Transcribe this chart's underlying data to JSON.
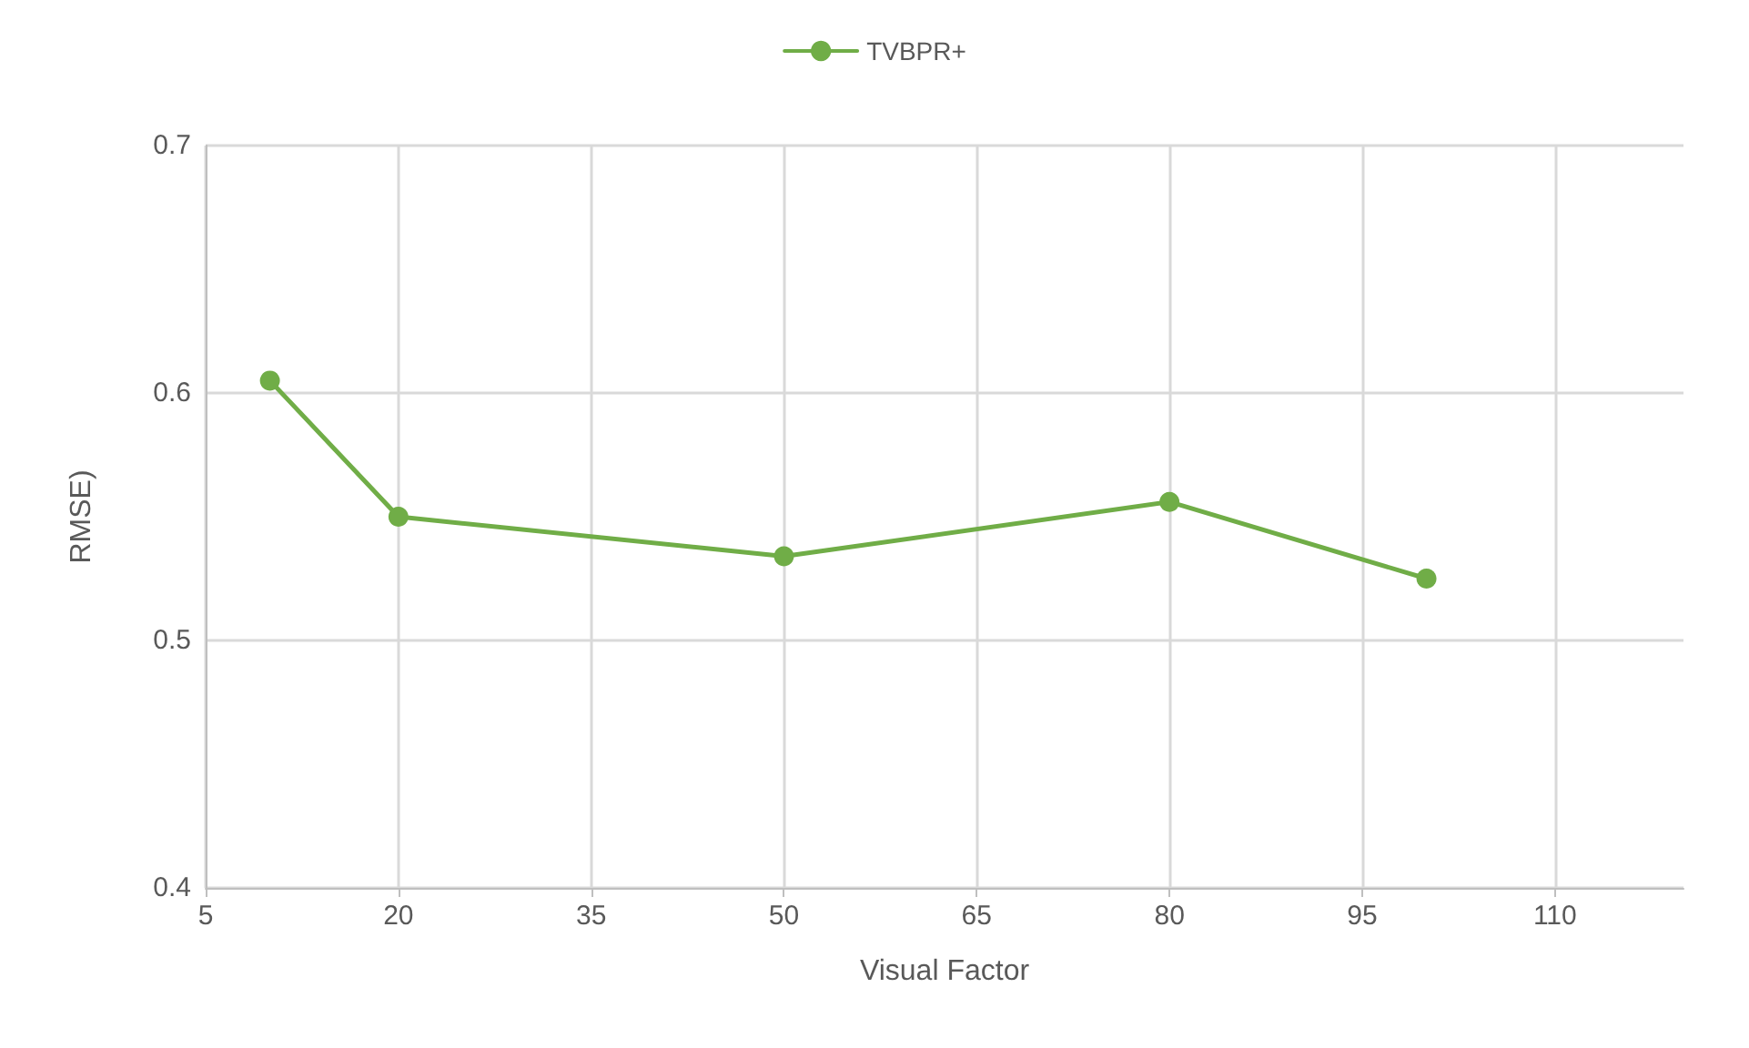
{
  "chart_data": {
    "type": "line",
    "xlabel": "Visual Factor",
    "ylabel": "RMSE)",
    "x": [
      10,
      20,
      50,
      80,
      100
    ],
    "series": [
      {
        "name": "TVBPR+",
        "color": "#70ad47",
        "values": [
          0.605,
          0.55,
          0.534,
          0.556,
          0.525
        ]
      }
    ],
    "xlim": [
      5,
      120
    ],
    "xticks": [
      5,
      20,
      35,
      50,
      65,
      80,
      95,
      110
    ],
    "ylim": [
      0.4,
      0.7
    ],
    "yticks": [
      0.4,
      0.5,
      0.6,
      0.7
    ],
    "grid": true,
    "legend": "top",
    "marker": "circle",
    "line_style": "solid"
  }
}
